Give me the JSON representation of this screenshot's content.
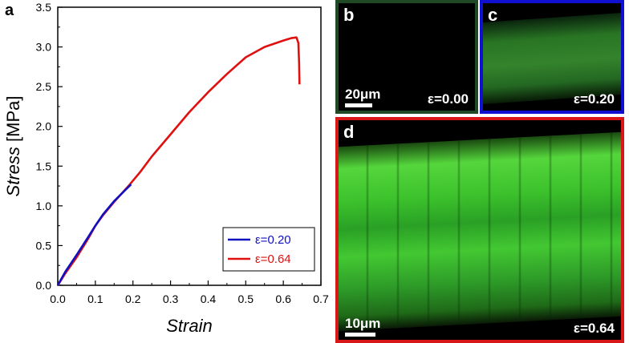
{
  "panels": {
    "a": {
      "letter": "a"
    },
    "b": {
      "letter": "b",
      "strain_label": "ε=0.00",
      "scale_label": "20μm",
      "border_color": "#1f4a25"
    },
    "c": {
      "letter": "c",
      "strain_label": "ε=0.20",
      "border_color": "#1010d0"
    },
    "d": {
      "letter": "d",
      "strain_label": "ε=0.64",
      "scale_label": "10μm",
      "border_color": "#d81818"
    }
  },
  "colors": {
    "tissue_green": "#3fd22a",
    "tissue_dark": "#1d6a1a"
  },
  "chart_data": {
    "type": "line",
    "xlabel": "Strain",
    "ylabel": "Stress [MPa]",
    "xlim": [
      0.0,
      0.7
    ],
    "ylim": [
      0.0,
      3.5
    ],
    "xticks": [
      "0.0",
      "0.1",
      "0.2",
      "0.3",
      "0.4",
      "0.5",
      "0.6",
      "0.7"
    ],
    "yticks": [
      "0.0",
      "0.5",
      "1.0",
      "1.5",
      "2.0",
      "2.5",
      "3.0",
      "3.5"
    ],
    "legend_position": "bottom-right",
    "grid": false,
    "series": [
      {
        "name": "ε=0.64",
        "color": "#e01010",
        "x": [
          0.0,
          0.02,
          0.05,
          0.08,
          0.1,
          0.12,
          0.15,
          0.19,
          0.22,
          0.25,
          0.3,
          0.35,
          0.4,
          0.45,
          0.5,
          0.55,
          0.6,
          0.62,
          0.635,
          0.64,
          0.642,
          0.643
        ],
        "y": [
          0.0,
          0.15,
          0.35,
          0.58,
          0.75,
          0.88,
          1.05,
          1.26,
          1.43,
          1.62,
          1.9,
          2.18,
          2.43,
          2.66,
          2.87,
          3.0,
          3.08,
          3.11,
          3.12,
          3.05,
          2.8,
          2.53
        ]
      },
      {
        "name": "ε=0.20",
        "color": "#1010c0",
        "x": [
          0.0,
          0.02,
          0.05,
          0.08,
          0.1,
          0.12,
          0.15,
          0.18,
          0.195
        ],
        "y": [
          0.0,
          0.17,
          0.38,
          0.6,
          0.75,
          0.89,
          1.06,
          1.2,
          1.27
        ]
      }
    ]
  }
}
